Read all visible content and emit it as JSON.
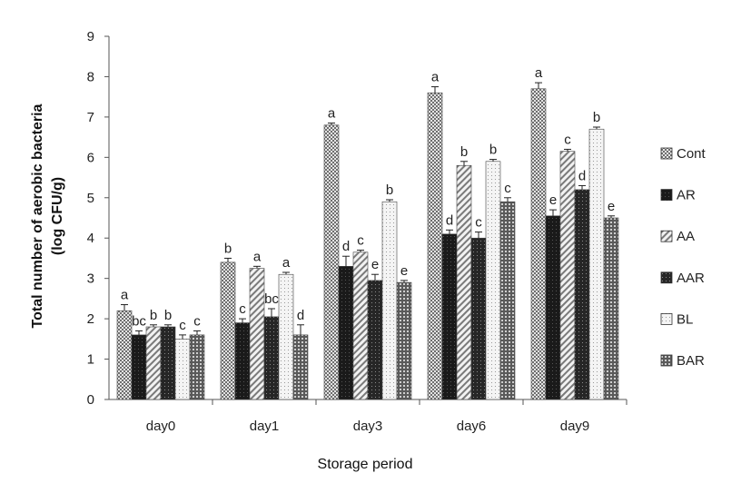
{
  "chart_data": {
    "type": "bar",
    "title": "",
    "xlabel": "Storage period",
    "ylabel_line1": "Total number of aerobic bacteria",
    "ylabel_line2": "(log CFU/g)",
    "ylim": [
      0,
      9
    ],
    "yticks": [
      "0",
      "1",
      "2",
      "3",
      "4",
      "5",
      "6",
      "7",
      "8",
      "9"
    ],
    "categories": [
      "day0",
      "day1",
      "day3",
      "day6",
      "day9"
    ],
    "legend_position": "right",
    "grid": false,
    "series": [
      {
        "name": "Cont",
        "values": [
          2.2,
          3.4,
          6.8,
          7.6,
          7.7
        ],
        "errors": [
          0.15,
          0.1,
          0.05,
          0.15,
          0.15
        ],
        "letters": [
          "a",
          "b",
          "a",
          "a",
          "a"
        ],
        "pattern": "checker",
        "color": "#9a9a9a"
      },
      {
        "name": "AR",
        "values": [
          1.6,
          1.9,
          3.3,
          4.1,
          4.55
        ],
        "errors": [
          0.1,
          0.1,
          0.25,
          0.1,
          0.15
        ],
        "letters": [
          "bc",
          "c",
          "d",
          "d",
          "e"
        ],
        "pattern": "dark",
        "color": "#1e1e1e"
      },
      {
        "name": "AA",
        "values": [
          1.8,
          3.25,
          3.65,
          5.8,
          6.15
        ],
        "errors": [
          0.05,
          0.05,
          0.05,
          0.1,
          0.05
        ],
        "letters": [
          "b",
          "a",
          "c",
          "b",
          "c"
        ],
        "pattern": "diag",
        "color": "#a8a8a8"
      },
      {
        "name": "AAR",
        "values": [
          1.8,
          2.05,
          2.95,
          4.0,
          5.2
        ],
        "errors": [
          0.05,
          0.2,
          0.15,
          0.15,
          0.1
        ],
        "letters": [
          "b",
          "bc",
          "e",
          "c",
          "d"
        ],
        "pattern": "darkdot",
        "color": "#303030"
      },
      {
        "name": "BL",
        "values": [
          1.5,
          3.1,
          4.9,
          5.9,
          6.7
        ],
        "errors": [
          0.1,
          0.05,
          0.05,
          0.05,
          0.05
        ],
        "letters": [
          "c",
          "a",
          "b",
          "b",
          "b"
        ],
        "pattern": "lightdot",
        "color": "#d8d8d8"
      },
      {
        "name": "BAR",
        "values": [
          1.6,
          1.6,
          2.9,
          4.9,
          4.5
        ],
        "errors": [
          0.1,
          0.25,
          0.05,
          0.1,
          0.05
        ],
        "letters": [
          "c",
          "d",
          "e",
          "c",
          "e"
        ],
        "pattern": "mesh",
        "color": "#707070"
      }
    ]
  }
}
